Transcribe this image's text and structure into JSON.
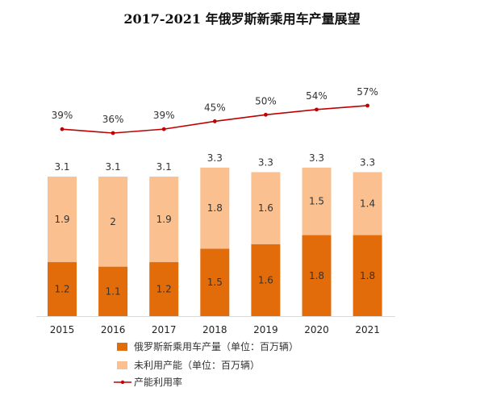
{
  "chart_data": {
    "type": "bar",
    "title": "2017-2021 年俄罗斯新乘用车产量展望",
    "categories": [
      "2015",
      "2016",
      "2017",
      "2018",
      "2019",
      "2020",
      "2021"
    ],
    "series": [
      {
        "name": "俄罗斯新乘用车产量（单位：百万辆）",
        "values": [
          1.2,
          1.1,
          1.2,
          1.5,
          1.6,
          1.8,
          1.8
        ],
        "color": "#E36C0A"
      },
      {
        "name": "未利用产能（单位：百万辆）",
        "values": [
          1.9,
          2,
          1.9,
          1.8,
          1.6,
          1.5,
          1.4
        ],
        "color": "#FAC090"
      }
    ],
    "totals": [
      3.1,
      3.1,
      3.1,
      3.3,
      3.3,
      3.3,
      3.3
    ],
    "line_series": {
      "name": "产能利用率",
      "values": [
        39,
        36,
        39,
        45,
        50,
        54,
        57
      ],
      "labels": [
        "39%",
        "36%",
        "39%",
        "45%",
        "50%",
        "54%",
        "57%"
      ],
      "color": "#C00000"
    },
    "stacked": true,
    "legend_position": "bottom-left"
  }
}
